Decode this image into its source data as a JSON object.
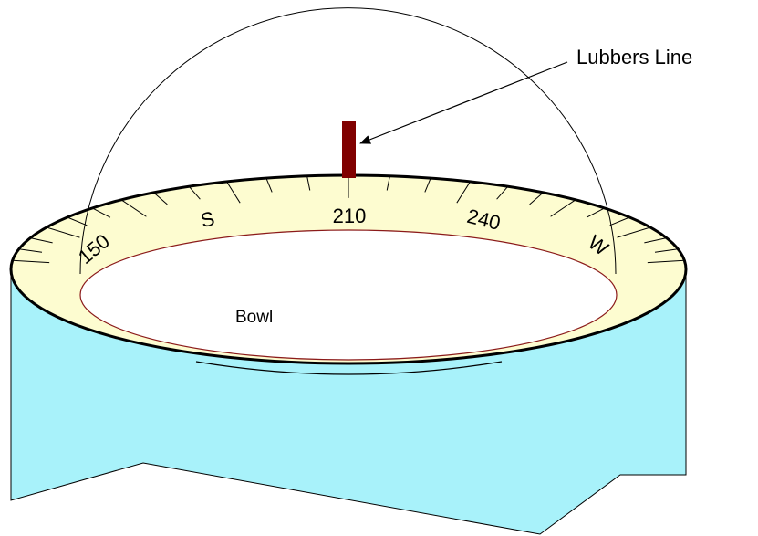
{
  "callout": {
    "label": "Lubbers Line"
  },
  "bowl": {
    "label": "Bowl"
  },
  "card_labels": [
    "150",
    "S",
    "210",
    "240",
    "W"
  ]
}
